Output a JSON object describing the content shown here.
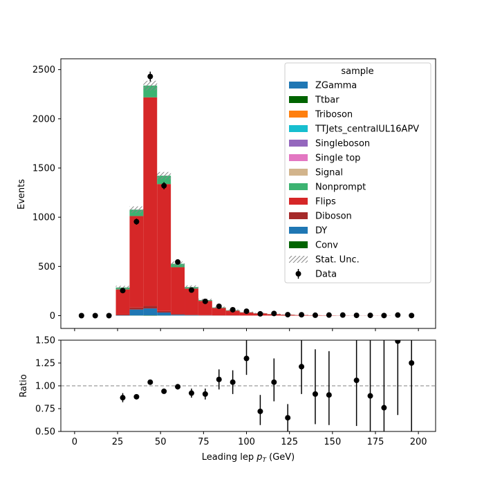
{
  "chart_data": [
    {
      "type": "bar",
      "stacked": true,
      "histogram": true,
      "bin_edges": [
        0,
        8,
        16,
        24,
        32,
        40,
        48,
        56,
        64,
        72,
        80,
        88,
        96,
        104,
        112,
        120,
        128,
        136,
        144,
        152,
        160,
        168,
        176,
        184,
        192,
        200
      ],
      "xlim": [
        -8,
        210
      ],
      "ylim": [
        -130,
        2610
      ],
      "ylabel": "Events",
      "y_ticks": [
        0,
        500,
        1000,
        1500,
        2000,
        2500
      ],
      "x_ticks": [
        0,
        25,
        50,
        75,
        100,
        125,
        150,
        175,
        200
      ],
      "series": [
        {
          "name": "ZGamma",
          "color": "#1f77b4",
          "values": [
            0,
            0,
            0,
            0,
            0,
            0,
            0,
            0,
            0,
            0,
            0,
            0,
            0,
            0,
            0,
            0,
            0,
            0,
            0,
            0,
            0,
            0,
            0,
            0,
            0
          ]
        },
        {
          "name": "Ttbar",
          "color": "#006400",
          "values": [
            0,
            0,
            0,
            0,
            0,
            0,
            0,
            0,
            0,
            0,
            0,
            0,
            0,
            0,
            0,
            0,
            0,
            0,
            0,
            0,
            0,
            0,
            0,
            0,
            0
          ]
        },
        {
          "name": "Triboson",
          "color": "#ff7f0e",
          "values": [
            0,
            0,
            0,
            0,
            0,
            0,
            0,
            0,
            0,
            0,
            0,
            0,
            0,
            0,
            0,
            0,
            0,
            0,
            0,
            0,
            0,
            0,
            0,
            0,
            0
          ]
        },
        {
          "name": "TTJets_centralUL16APV",
          "color": "#17becf",
          "values": [
            0,
            0,
            0,
            0,
            0,
            0,
            0,
            0,
            0,
            0,
            0,
            0,
            0,
            0,
            0,
            0,
            0,
            0,
            0,
            0,
            0,
            0,
            0,
            0,
            0
          ]
        },
        {
          "name": "Singleboson",
          "color": "#9467bd",
          "values": [
            0,
            0,
            0,
            0,
            0,
            0,
            0,
            0,
            0,
            0,
            0,
            0,
            0,
            0,
            0,
            0,
            0,
            0,
            0,
            0,
            0,
            0,
            0,
            0,
            0
          ]
        },
        {
          "name": "Single top",
          "color": "#e377c2",
          "values": [
            0,
            0,
            0,
            0,
            0,
            0,
            0,
            0,
            0,
            0,
            0,
            0,
            0,
            0,
            0,
            0,
            0,
            0,
            0,
            0,
            0,
            0,
            0,
            0,
            0
          ]
        },
        {
          "name": "Signal",
          "color": "#d2b48c",
          "values": [
            0,
            0,
            0,
            0,
            0,
            0,
            0,
            0,
            0,
            0,
            0,
            0,
            0,
            0,
            0,
            0,
            0,
            0,
            0,
            0,
            0,
            0,
            0,
            0,
            0
          ]
        },
        {
          "name": "Nonprompt",
          "color": "#3cb371",
          "values": [
            0,
            0,
            0,
            20,
            65,
            120,
            85,
            35,
            15,
            8,
            5,
            4,
            2,
            1,
            1,
            1,
            0,
            0,
            0,
            0,
            0,
            0,
            0,
            0,
            0
          ]
        },
        {
          "name": "Flips",
          "color": "#d62728",
          "values": [
            0,
            0,
            0,
            255,
            930,
            2120,
            1290,
            475,
            265,
            145,
            75,
            48,
            32,
            22,
            14,
            9,
            6,
            4,
            3,
            2,
            1,
            1,
            1,
            0,
            0
          ]
        },
        {
          "name": "Diboson",
          "color": "#a52a2a",
          "values": [
            0,
            0,
            0,
            8,
            20,
            25,
            15,
            8,
            5,
            3,
            2,
            2,
            1,
            1,
            1,
            0,
            0,
            0,
            0,
            0,
            0,
            0,
            0,
            0,
            0
          ]
        },
        {
          "name": "DY",
          "color": "#1f77b4",
          "values": [
            0,
            0,
            0,
            3,
            60,
            70,
            30,
            8,
            4,
            2,
            1,
            1,
            0,
            0,
            0,
            0,
            0,
            0,
            0,
            0,
            0,
            0,
            0,
            0,
            0
          ]
        },
        {
          "name": "Conv",
          "color": "#006400",
          "values": [
            0,
            0,
            0,
            0,
            2,
            3,
            2,
            1,
            1,
            0,
            0,
            0,
            0,
            0,
            0,
            0,
            0,
            0,
            0,
            0,
            0,
            0,
            0,
            0,
            0
          ]
        }
      ],
      "data_points": {
        "name": "Data",
        "x": [
          4,
          12,
          20,
          28,
          36,
          44,
          52,
          60,
          68,
          76,
          84,
          92,
          100,
          108,
          116,
          124,
          132,
          140,
          148,
          156,
          164,
          172,
          180,
          188,
          196
        ],
        "y": [
          0,
          0,
          0,
          255,
          955,
          2430,
          1320,
          545,
          260,
          145,
          95,
          60,
          45,
          18,
          22,
          10,
          9,
          4,
          6,
          6,
          3,
          3,
          1,
          6,
          1
        ]
      },
      "legend": {
        "title": "sample",
        "placement": "top-right"
      },
      "stat_unc_label": "Stat. Unc."
    },
    {
      "type": "scatter",
      "xlabel_prefix": "Leading lep ",
      "xlabel_var": "p",
      "xlabel_sub": "T",
      "xlabel_suffix": " (GeV)",
      "ylabel": "Ratio",
      "xlim": [
        -8,
        210
      ],
      "ylim": [
        0.5,
        1.5
      ],
      "y_ticks": [
        "0.50",
        "0.75",
        "1.00",
        "1.25",
        "1.50"
      ],
      "x_ticks": [
        "0",
        "25",
        "50",
        "75",
        "100",
        "125",
        "150",
        "175",
        "200"
      ],
      "reference_line": 1.0,
      "x": [
        28,
        36,
        44,
        52,
        60,
        68,
        76,
        84,
        92,
        100,
        108,
        116,
        124,
        132,
        140,
        148,
        164,
        172,
        180,
        188,
        196
      ],
      "y": [
        0.87,
        0.88,
        1.04,
        0.94,
        0.99,
        0.92,
        0.91,
        1.07,
        1.04,
        1.3,
        0.72,
        1.04,
        0.65,
        1.21,
        0.91,
        0.9,
        1.06,
        0.89,
        0.76,
        1.49,
        1.25
      ],
      "y_low": [
        0.82,
        0.86,
        1.02,
        0.93,
        0.96,
        0.87,
        0.85,
        0.96,
        0.91,
        1.12,
        0.57,
        0.83,
        0.5,
        0.91,
        0.58,
        0.57,
        0.56,
        0.5,
        0.5,
        0.68,
        0.5
      ],
      "y_high": [
        0.92,
        0.9,
        1.06,
        0.95,
        1.02,
        0.97,
        0.97,
        1.18,
        1.17,
        1.5,
        0.9,
        1.3,
        0.8,
        1.5,
        1.4,
        1.38,
        1.5,
        1.5,
        1.5,
        1.5,
        1.5
      ]
    }
  ]
}
